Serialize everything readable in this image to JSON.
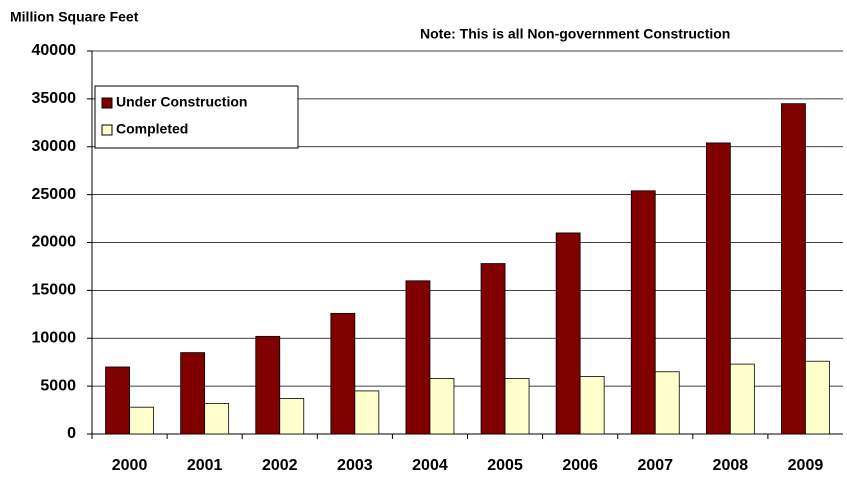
{
  "chart_data": {
    "type": "bar",
    "title": "Million Square Feet",
    "annotation": "Note: This is all Non-government Construction",
    "categories": [
      "2000",
      "2001",
      "2002",
      "2003",
      "2004",
      "2005",
      "2006",
      "2007",
      "2008",
      "2009"
    ],
    "series": [
      {
        "name": "Under Construction",
        "color": "#800000",
        "values": [
          7000,
          8500,
          10200,
          12600,
          16000,
          17800,
          21000,
          25400,
          30400,
          34500
        ]
      },
      {
        "name": "Completed",
        "color": "#ffffcc",
        "values": [
          2800,
          3200,
          3700,
          4500,
          5800,
          5800,
          6000,
          6500,
          7300,
          7600
        ]
      }
    ],
    "ylim": [
      0,
      40000
    ],
    "yticks": [
      0,
      5000,
      10000,
      15000,
      20000,
      25000,
      30000,
      35000,
      40000
    ],
    "grid": true,
    "legend": "top-left"
  }
}
